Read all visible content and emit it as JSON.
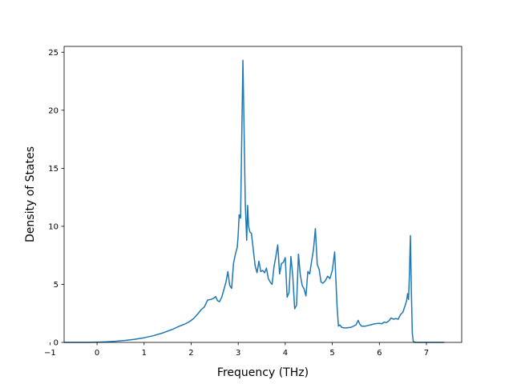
{
  "chart_data": {
    "type": "line",
    "title": "",
    "xlabel": "Frequency (THz)",
    "ylabel": "Density of States",
    "xlim": [
      -0.7,
      7.75
    ],
    "ylim": [
      0,
      25.5
    ],
    "xticks": [
      -1,
      0,
      1,
      2,
      3,
      4,
      5,
      6,
      7
    ],
    "yticks": [
      0,
      5,
      10,
      15,
      20,
      25
    ],
    "xtick_labels": [
      "−1",
      "0",
      "1",
      "2",
      "3",
      "4",
      "5",
      "6",
      "7"
    ],
    "ytick_labels": [
      "0",
      "5",
      "10",
      "15",
      "20",
      "25"
    ],
    "grid": false,
    "series": [
      {
        "color": "#1f77b4",
        "x": [
          -0.7,
          -0.2,
          0.0,
          0.2,
          0.4,
          0.6,
          0.8,
          1.0,
          1.2,
          1.4,
          1.6,
          1.75,
          1.85,
          1.95,
          2.05,
          2.15,
          2.22,
          2.28,
          2.35,
          2.42,
          2.48,
          2.52,
          2.56,
          2.6,
          2.65,
          2.7,
          2.74,
          2.78,
          2.82,
          2.86,
          2.9,
          2.94,
          2.98,
          3.0,
          3.02,
          3.05,
          3.08,
          3.1,
          3.12,
          3.15,
          3.18,
          3.2,
          3.22,
          3.25,
          3.28,
          3.32,
          3.36,
          3.4,
          3.44,
          3.48,
          3.52,
          3.56,
          3.6,
          3.64,
          3.68,
          3.72,
          3.76,
          3.8,
          3.84,
          3.88,
          3.92,
          3.96,
          4.0,
          4.04,
          4.08,
          4.12,
          4.16,
          4.2,
          4.24,
          4.28,
          4.32,
          4.36,
          4.4,
          4.44,
          4.48,
          4.52,
          4.56,
          4.6,
          4.64,
          4.68,
          4.72,
          4.76,
          4.8,
          4.85,
          4.9,
          4.95,
          5.0,
          5.05,
          5.1,
          5.13,
          5.16,
          5.2,
          5.25,
          5.3,
          5.4,
          5.5,
          5.55,
          5.58,
          5.62,
          5.7,
          5.8,
          5.9,
          6.0,
          6.05,
          6.1,
          6.15,
          6.2,
          6.25,
          6.3,
          6.35,
          6.4,
          6.45,
          6.5,
          6.55,
          6.58,
          6.6,
          6.62,
          6.64,
          6.66,
          6.68,
          6.7,
          6.72,
          6.76,
          6.8,
          7.0,
          7.2,
          7.38
        ],
        "y": [
          0.0,
          0.0,
          0.02,
          0.05,
          0.1,
          0.17,
          0.27,
          0.4,
          0.58,
          0.82,
          1.12,
          1.4,
          1.55,
          1.75,
          2.05,
          2.5,
          2.85,
          3.05,
          3.65,
          3.7,
          3.8,
          3.95,
          3.6,
          3.5,
          3.9,
          4.6,
          5.2,
          6.1,
          4.9,
          4.65,
          6.8,
          7.6,
          8.2,
          9.3,
          11.0,
          10.7,
          19.0,
          24.3,
          19.5,
          12.0,
          8.8,
          11.8,
          10.0,
          9.5,
          9.4,
          8.0,
          6.6,
          6.0,
          7.0,
          6.1,
          6.2,
          6.0,
          6.4,
          5.5,
          5.2,
          5.0,
          6.5,
          7.4,
          8.4,
          5.9,
          6.8,
          6.9,
          7.3,
          3.9,
          4.3,
          7.4,
          5.7,
          2.9,
          3.2,
          7.6,
          5.8,
          4.9,
          4.6,
          4.0,
          6.1,
          5.9,
          7.0,
          8.0,
          9.8,
          6.7,
          6.3,
          5.2,
          5.1,
          5.3,
          5.7,
          5.5,
          6.2,
          7.8,
          3.2,
          1.4,
          1.5,
          1.3,
          1.25,
          1.25,
          1.3,
          1.5,
          1.9,
          1.6,
          1.4,
          1.4,
          1.5,
          1.6,
          1.65,
          1.6,
          1.75,
          1.7,
          1.85,
          2.1,
          2.0,
          2.05,
          2.0,
          2.4,
          2.6,
          3.2,
          3.6,
          4.2,
          3.7,
          6.0,
          9.2,
          4.5,
          0.8,
          0.1,
          0.0,
          0.0,
          0.0,
          0.0,
          0.0
        ]
      }
    ]
  }
}
